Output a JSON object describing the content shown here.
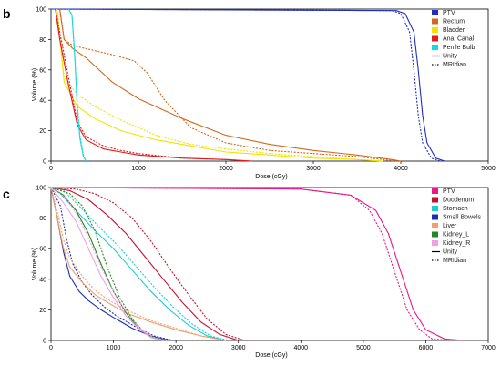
{
  "chart_data": [
    {
      "panel": "b",
      "type": "line",
      "xlabel": "Dose (cGy)",
      "ylabel": "Volume (%)",
      "xlim": [
        0,
        5000
      ],
      "ylim": [
        0,
        100
      ],
      "xticks": [
        0,
        1000,
        2000,
        3000,
        4000,
        5000
      ],
      "yticks": [
        0,
        20,
        40,
        60,
        80,
        100
      ],
      "grid": false,
      "legend_placement": "top-right",
      "linestyle_legend": [
        {
          "label": "Unity",
          "style": "solid"
        },
        {
          "label": "MRIdian",
          "style": "dotted"
        }
      ],
      "series": [
        {
          "name": "PTV",
          "color": "#1f2fbf",
          "unity": {
            "x": [
              0,
              3950,
              4050,
              4150,
              4200,
              4250,
              4300,
              4400,
              4500
            ],
            "y": [
              100,
              99,
              97,
              85,
              60,
              30,
              12,
              2,
              0
            ]
          },
          "mridian": {
            "x": [
              0,
              3900,
              4000,
              4100,
              4150,
              4200,
              4250,
              4350,
              4450
            ],
            "y": [
              100,
              99,
              97,
              85,
              60,
              30,
              12,
              2,
              0
            ]
          }
        },
        {
          "name": "Rectum",
          "color": "#d2691e",
          "unity": {
            "x": [
              100,
              150,
              250,
              400,
              700,
              1000,
              1500,
              2000,
              2500,
              3000,
              3500,
              3900,
              4000
            ],
            "y": [
              100,
              80,
              74,
              68,
              52,
              41,
              28,
              17,
              11,
              7,
              4,
              1,
              0
            ]
          },
          "mridian": {
            "x": [
              100,
              150,
              250,
              400,
              700,
              950,
              1100,
              1300,
              1600,
              2000,
              2500,
              3000,
              3500,
              3800,
              3950
            ],
            "y": [
              100,
              80,
              76,
              74,
              70,
              66,
              58,
              40,
              22,
              12,
              7,
              5,
              3,
              1,
              0
            ]
          }
        },
        {
          "name": "Bladder",
          "color": "#f2e200",
          "unity": {
            "x": [
              70,
              150,
              300,
              500,
              800,
              1200,
              1600,
              2000,
              2500,
              3000,
              3500,
              3800
            ],
            "y": [
              100,
              52,
              36,
              28,
              20,
              14,
              10,
              6,
              4,
              2,
              1,
              0
            ]
          },
          "mridian": {
            "x": [
              70,
              150,
              300,
              500,
              800,
              1200,
              1600,
              2000,
              2500,
              3000,
              3500,
              3800
            ],
            "y": [
              100,
              55,
              44,
              36,
              27,
              17,
              11,
              8,
              5,
              3,
              1,
              0
            ]
          }
        },
        {
          "name": "Anal Canal",
          "color": "#e21b1b",
          "unity": {
            "x": [
              50,
              100,
              200,
              300,
              400,
              600,
              800,
              1000,
              1500,
              2000,
              2300
            ],
            "y": [
              100,
              80,
              50,
              24,
              14,
              8,
              6,
              4,
              2,
              1,
              0
            ]
          },
          "mridian": {
            "x": [
              50,
              100,
              200,
              300,
              400,
              600,
              800,
              1000,
              1500,
              2000,
              2300
            ],
            "y": [
              100,
              85,
              55,
              26,
              16,
              10,
              7,
              5,
              2,
              1,
              0
            ]
          }
        },
        {
          "name": "Penile Bulb",
          "color": "#19d7e0",
          "unity": {
            "x": [
              200,
              240,
              270,
              300,
              330,
              370,
              400
            ],
            "y": [
              100,
              96,
              70,
              35,
              15,
              3,
              0
            ]
          },
          "mridian": {
            "x": [
              200,
              240,
              270,
              300,
              330,
              370,
              400
            ],
            "y": [
              100,
              96,
              72,
              38,
              17,
              4,
              0
            ]
          }
        }
      ]
    },
    {
      "panel": "c",
      "type": "line",
      "xlabel": "Dose (cGy)",
      "ylabel": "Volume (%)",
      "xlim": [
        0,
        7000
      ],
      "ylim": [
        0,
        100
      ],
      "xticks": [
        0,
        1000,
        2000,
        3000,
        4000,
        5000,
        6000,
        7000
      ],
      "yticks": [
        0,
        20,
        40,
        60,
        80,
        100
      ],
      "grid": false,
      "legend_placement": "top-right",
      "linestyle_legend": [
        {
          "label": "Unity",
          "style": "solid"
        },
        {
          "label": "MRIdian",
          "style": "dotted"
        }
      ],
      "series": [
        {
          "name": "PTV",
          "color": "#e8198b",
          "unity": {
            "x": [
              0,
              4000,
              4800,
              5200,
              5400,
              5600,
              5800,
              6000,
              6300,
              6600
            ],
            "y": [
              100,
              99,
              95,
              85,
              70,
              45,
              20,
              7,
              1,
              0
            ]
          },
          "mridian": {
            "x": [
              0,
              4000,
              4800,
              5100,
              5300,
              5500,
              5700,
              5900,
              6100,
              6400
            ],
            "y": [
              100,
              99,
              95,
              85,
              70,
              45,
              20,
              7,
              1,
              0
            ]
          }
        },
        {
          "name": "Duodenum",
          "color": "#c8102e",
          "unity": {
            "x": [
              0,
              300,
              600,
              900,
              1200,
              1500,
              1800,
              2100,
              2400,
              2700,
              3000
            ],
            "y": [
              100,
              98,
              92,
              82,
              70,
              55,
              40,
              25,
              12,
              4,
              0
            ]
          },
          "mridian": {
            "x": [
              0,
              400,
              700,
              1000,
              1300,
              1600,
              1900,
              2200,
              2500,
              2800,
              3100
            ],
            "y": [
              100,
              99,
              96,
              90,
              80,
              65,
              47,
              30,
              14,
              4,
              0
            ]
          }
        },
        {
          "name": "Stomach",
          "color": "#1ecbd6",
          "unity": {
            "x": [
              0,
              150,
              400,
              700,
              1000,
              1300,
              1600,
              1900,
              2200,
              2500,
              2800
            ],
            "y": [
              100,
              96,
              85,
              72,
              60,
              46,
              32,
              20,
              10,
              3,
              0
            ]
          },
          "mridian": {
            "x": [
              0,
              200,
              450,
              750,
              1050,
              1350,
              1650,
              1950,
              2250,
              2550,
              2850
            ],
            "y": [
              100,
              98,
              88,
              75,
              63,
              49,
              35,
              22,
              11,
              3,
              0
            ]
          }
        },
        {
          "name": "Small Bowels",
          "color": "#1a2fb0",
          "unity": {
            "x": [
              0,
              100,
              200,
              300,
              450,
              600,
              800,
              1000,
              1300,
              1600,
              1900
            ],
            "y": [
              100,
              80,
              58,
              42,
              32,
              26,
              20,
              15,
              8,
              3,
              0
            ]
          },
          "mridian": {
            "x": [
              0,
              150,
              250,
              350,
              500,
              650,
              850,
              1050,
              1350,
              1650,
              1950
            ],
            "y": [
              100,
              88,
              66,
              50,
              38,
              30,
              22,
              16,
              9,
              3,
              0
            ]
          }
        },
        {
          "name": "Liver",
          "color": "#f0a070",
          "unity": {
            "x": [
              0,
              100,
              200,
              300,
              500,
              700,
              900,
              1200,
              1600,
              2000,
              2400,
              2800
            ],
            "y": [
              100,
              80,
              60,
              48,
              38,
              30,
              25,
              18,
              12,
              7,
              3,
              0
            ]
          },
          "mridian": {
            "x": [
              0,
              100,
              200,
              300,
              500,
              700,
              900,
              1200,
              1600,
              2000,
              2400,
              2800
            ],
            "y": [
              100,
              84,
              66,
              54,
              42,
              33,
              27,
              20,
              13,
              8,
              3,
              0
            ]
          }
        },
        {
          "name": "Kidney_L",
          "color": "#208a20",
          "unity": {
            "x": [
              0,
              200,
              400,
              600,
              800,
              1000,
              1200,
              1400,
              1600,
              1800
            ],
            "y": [
              100,
              95,
              85,
              70,
              50,
              32,
              18,
              8,
              2,
              0
            ]
          },
          "mridian": {
            "x": [
              0,
              300,
              500,
              700,
              900,
              1100,
              1300,
              1500,
              1700,
              1900
            ],
            "y": [
              100,
              96,
              88,
              72,
              48,
              28,
              14,
              5,
              1,
              0
            ]
          }
        },
        {
          "name": "Kidney_R",
          "color": "#f0a0e0",
          "unity": {
            "x": [
              0,
              200,
              400,
              600,
              800,
              1000,
              1200,
              1400,
              1600,
              1800
            ],
            "y": [
              100,
              90,
              78,
              60,
              42,
              28,
              16,
              8,
              2,
              0
            ]
          },
          "mridian": {
            "x": [
              0,
              250,
              450,
              650,
              850,
              1050,
              1250,
              1450,
              1650,
              1850
            ],
            "y": [
              100,
              93,
              80,
              62,
              44,
              28,
              16,
              7,
              2,
              0
            ]
          }
        }
      ]
    }
  ]
}
